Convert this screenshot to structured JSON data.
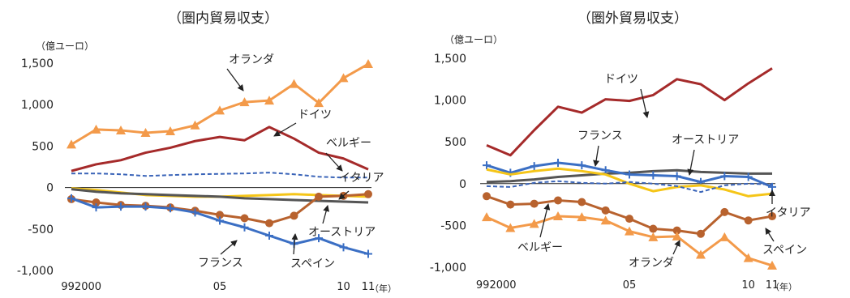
{
  "chart_data": [
    {
      "type": "line",
      "title": "（圏内貿易収支）",
      "unit_label": "（億ユーロ）",
      "x_label": "（年）",
      "x": [
        1999,
        2000,
        2001,
        2002,
        2003,
        2004,
        2005,
        2006,
        2007,
        2008,
        2009,
        2010,
        2011
      ],
      "x_tick_labels": [
        {
          "x": 1999.4,
          "label": "992000"
        },
        {
          "x": 2005,
          "label": "05"
        },
        {
          "x": 2010,
          "label": "10"
        },
        {
          "x": 2011,
          "label": "11"
        }
      ],
      "ylim": [
        -1000,
        1500
      ],
      "y_ticks": [
        {
          "value": 1500,
          "label": "1,500"
        },
        {
          "value": 1000,
          "label": "1,000"
        },
        {
          "value": 500,
          "label": "500"
        },
        {
          "value": 0,
          "label": "0"
        },
        {
          "value": -500,
          "label": "-500"
        },
        {
          "value": -1000,
          "label": "-1,000"
        }
      ],
      "grid": false,
      "series": [
        {
          "name": "オランダ",
          "color": "#f39a4a",
          "marker": "triangle",
          "dash": false,
          "values": [
            520,
            700,
            690,
            660,
            680,
            750,
            930,
            1030,
            1050,
            1250,
            1020,
            1320,
            1490
          ]
        },
        {
          "name": "ドイツ",
          "color": "#a52a2a",
          "marker": "none",
          "dash": false,
          "values": [
            200,
            280,
            330,
            420,
            480,
            560,
            610,
            570,
            730,
            590,
            420,
            350,
            220
          ]
        },
        {
          "name": "ベルギー",
          "color": "#3a64b8",
          "marker": "none",
          "dash": true,
          "values": [
            170,
            170,
            160,
            140,
            150,
            160,
            165,
            170,
            180,
            160,
            130,
            120,
            120
          ]
        },
        {
          "name": "イタリア",
          "color": "#f5c518",
          "marker": "none",
          "dash": false,
          "values": [
            -10,
            -30,
            -60,
            -90,
            -100,
            -110,
            -110,
            -100,
            -90,
            -80,
            -90,
            -100,
            -110
          ]
        },
        {
          "name": "オーストリア",
          "color": "#555555",
          "marker": "none",
          "dash": false,
          "values": [
            -20,
            -50,
            -70,
            -80,
            -90,
            -100,
            -110,
            -130,
            -140,
            -150,
            -160,
            -170,
            -180
          ]
        },
        {
          "name": "スペイン",
          "color": "#b8622e",
          "marker": "circle",
          "dash": false,
          "values": [
            -140,
            -180,
            -210,
            -220,
            -240,
            -280,
            -330,
            -370,
            -430,
            -340,
            -110,
            -100,
            -80
          ]
        },
        {
          "name": "フランス",
          "color": "#3b6fc4",
          "marker": "plus",
          "dash": false,
          "values": [
            -130,
            -240,
            -230,
            -230,
            -250,
            -300,
            -400,
            -480,
            -580,
            -680,
            -610,
            -720,
            -800
          ]
        }
      ],
      "series_label_marks": [
        {
          "series": "オランダ",
          "text": "オランダ"
        },
        {
          "series": "ドイツ",
          "text": "ドイツ"
        },
        {
          "series": "ベルギー",
          "text": "ベルギー"
        },
        {
          "series": "イタリア",
          "text": "イタリア"
        },
        {
          "series": "オーストリア",
          "text": "オーストリア"
        },
        {
          "series": "スペイン",
          "text": "スペイン"
        },
        {
          "series": "フランス",
          "text": "フランス"
        }
      ]
    },
    {
      "type": "line",
      "title": "（圏外貿易収支）",
      "unit_label": "（億ユーロ）",
      "x_label": "（年）",
      "x": [
        1999,
        2000,
        2001,
        2002,
        2003,
        2004,
        2005,
        2006,
        2007,
        2008,
        2009,
        2010,
        2011
      ],
      "x_tick_labels": [
        {
          "x": 1999.4,
          "label": "992000"
        },
        {
          "x": 2005,
          "label": "05"
        },
        {
          "x": 2010,
          "label": "10"
        },
        {
          "x": 2011,
          "label": "11"
        }
      ],
      "ylim": [
        -1000,
        1500
      ],
      "y_ticks": [
        {
          "value": 1500,
          "label": "1,500"
        },
        {
          "value": 1000,
          "label": "1,000"
        },
        {
          "value": 500,
          "label": "500"
        },
        {
          "value": 0,
          "label": "0"
        },
        {
          "value": -500,
          "label": "-500"
        },
        {
          "value": -1000,
          "label": "-1,000"
        }
      ],
      "grid": false,
      "series": [
        {
          "name": "ドイツ",
          "color": "#a52a2a",
          "marker": "none",
          "dash": false,
          "values": [
            460,
            340,
            640,
            920,
            850,
            1010,
            990,
            1060,
            1250,
            1190,
            1000,
            1200,
            1380
          ]
        },
        {
          "name": "オーストリア",
          "color": "#555555",
          "marker": "none",
          "dash": false,
          "values": [
            20,
            30,
            50,
            80,
            100,
            120,
            130,
            150,
            160,
            140,
            130,
            120,
            120
          ]
        },
        {
          "name": "フランス",
          "color": "#3b6fc4",
          "marker": "plus",
          "dash": false,
          "values": [
            220,
            130,
            210,
            250,
            220,
            160,
            110,
            100,
            90,
            20,
            90,
            80,
            -40
          ]
        },
        {
          "name": "イタリア",
          "color": "#f5c518",
          "marker": "none",
          "dash": false,
          "values": [
            170,
            110,
            150,
            180,
            150,
            110,
            0,
            -90,
            -40,
            -20,
            -70,
            -150,
            -120
          ]
        },
        {
          "name": "ベルギー",
          "color": "#3a64b8",
          "marker": "none",
          "dash": true,
          "values": [
            -30,
            -40,
            10,
            30,
            10,
            0,
            20,
            0,
            -30,
            -100,
            -20,
            0,
            -10
          ]
        },
        {
          "name": "スペイン",
          "color": "#b8622e",
          "marker": "circle",
          "dash": false,
          "values": [
            -150,
            -250,
            -240,
            -200,
            -220,
            -320,
            -420,
            -540,
            -560,
            -600,
            -340,
            -440,
            -390
          ]
        },
        {
          "name": "オランダ",
          "color": "#f39a4a",
          "marker": "triangle",
          "dash": false,
          "values": [
            -400,
            -530,
            -480,
            -390,
            -400,
            -440,
            -570,
            -640,
            -630,
            -850,
            -640,
            -890,
            -980
          ]
        }
      ],
      "series_label_marks": [
        {
          "series": "ドイツ",
          "text": "ドイツ"
        },
        {
          "series": "フランス",
          "text": "フランス"
        },
        {
          "series": "オーストリア",
          "text": "オーストリア"
        },
        {
          "series": "イタリア",
          "text": "イタリア"
        },
        {
          "series": "ベルギー",
          "text": "ベルギー"
        },
        {
          "series": "スペイン",
          "text": "スペイン"
        },
        {
          "series": "オランダ",
          "text": "オランダ"
        }
      ]
    }
  ]
}
